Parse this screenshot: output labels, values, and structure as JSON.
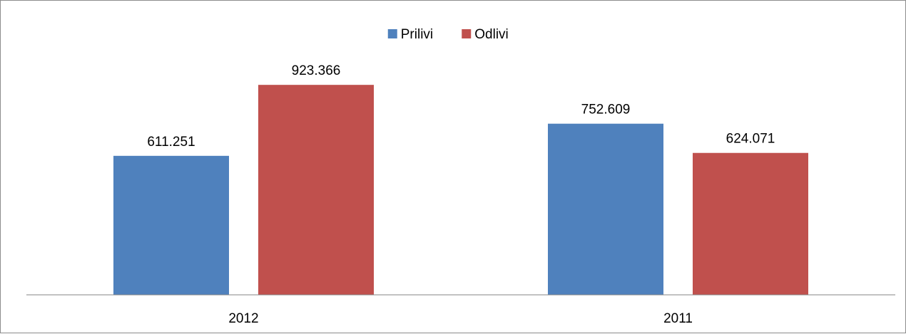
{
  "chart_data": {
    "type": "bar",
    "categories": [
      "2012",
      "2011"
    ],
    "series": [
      {
        "name": "Prilivi",
        "values": [
          611.251,
          752.609
        ],
        "color": "#4F81BD"
      },
      {
        "name": "Odlivi",
        "values": [
          923.366,
          624.071
        ],
        "color": "#C0504D"
      }
    ],
    "data_labels": [
      [
        "611.251",
        "752.609"
      ],
      [
        "923.366",
        "624.071"
      ]
    ],
    "ylim": [
      0,
      1000
    ],
    "grid": false,
    "legend_position": "top-center",
    "value_axis_visible": false
  }
}
